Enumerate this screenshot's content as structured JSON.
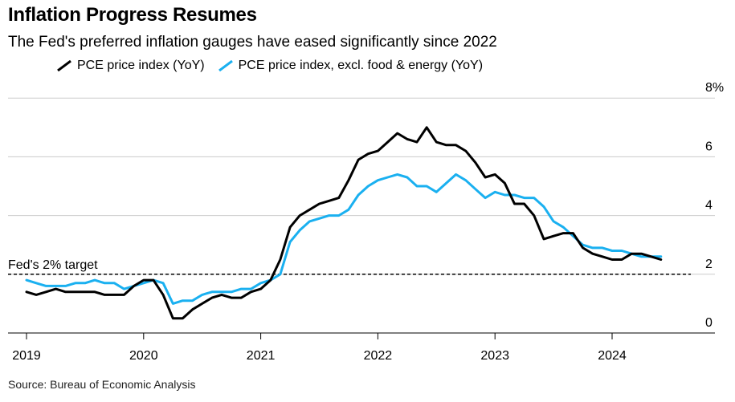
{
  "title": "Inflation Progress Resumes",
  "subtitle": "The Fed's preferred inflation gauges have eased significantly since 2022",
  "source": "Source: Bureau of Economic Analysis",
  "colors": {
    "pce": "#000000",
    "core": "#1ab0f0",
    "grid": "#cccccc"
  },
  "chart_data": {
    "type": "line",
    "title": "Inflation Progress Resumes",
    "subtitle": "The Fed's preferred inflation gauges have eased significantly since 2022",
    "xlabel": "",
    "ylabel": "",
    "x_tick_labels": [
      "2019",
      "2020",
      "2021",
      "2022",
      "2023",
      "2024"
    ],
    "y_tick_labels": [
      "0",
      "2",
      "4",
      "6",
      "8%"
    ],
    "y_ticks": [
      0,
      2,
      4,
      6,
      8
    ],
    "ylim": [
      0,
      8
    ],
    "xlim": [
      "2019-01",
      "2024-12"
    ],
    "grid": true,
    "legend_position": "top",
    "reference_line": {
      "value": 2,
      "label": "Fed's 2% target",
      "style": "dashed"
    },
    "x": [
      "2019-01",
      "2019-02",
      "2019-03",
      "2019-04",
      "2019-05",
      "2019-06",
      "2019-07",
      "2019-08",
      "2019-09",
      "2019-10",
      "2019-11",
      "2019-12",
      "2020-01",
      "2020-02",
      "2020-03",
      "2020-04",
      "2020-05",
      "2020-06",
      "2020-07",
      "2020-08",
      "2020-09",
      "2020-10",
      "2020-11",
      "2020-12",
      "2021-01",
      "2021-02",
      "2021-03",
      "2021-04",
      "2021-05",
      "2021-06",
      "2021-07",
      "2021-08",
      "2021-09",
      "2021-10",
      "2021-11",
      "2021-12",
      "2022-01",
      "2022-02",
      "2022-03",
      "2022-04",
      "2022-05",
      "2022-06",
      "2022-07",
      "2022-08",
      "2022-09",
      "2022-10",
      "2022-11",
      "2022-12",
      "2023-01",
      "2023-02",
      "2023-03",
      "2023-04",
      "2023-05",
      "2023-06",
      "2023-07",
      "2023-08",
      "2023-09",
      "2023-10",
      "2023-11",
      "2023-12",
      "2024-01",
      "2024-02",
      "2024-03",
      "2024-04",
      "2024-05",
      "2024-06"
    ],
    "series": [
      {
        "name": "PCE price index (YoY)",
        "color": "#000000",
        "values": [
          1.4,
          1.3,
          1.4,
          1.5,
          1.4,
          1.4,
          1.4,
          1.4,
          1.3,
          1.3,
          1.3,
          1.6,
          1.8,
          1.8,
          1.3,
          0.5,
          0.5,
          0.8,
          1.0,
          1.2,
          1.3,
          1.2,
          1.2,
          1.4,
          1.5,
          1.8,
          2.5,
          3.6,
          4.0,
          4.2,
          4.4,
          4.5,
          4.6,
          5.2,
          5.9,
          6.1,
          6.2,
          6.5,
          6.8,
          6.6,
          6.5,
          7.0,
          6.5,
          6.4,
          6.4,
          6.2,
          5.8,
          5.3,
          5.4,
          5.1,
          4.4,
          4.4,
          4.0,
          3.2,
          3.3,
          3.4,
          3.4,
          2.9,
          2.7,
          2.6,
          2.5,
          2.5,
          2.7,
          2.7,
          2.6,
          2.5
        ]
      },
      {
        "name": "PCE price index, excl. food & energy (YoY)",
        "color": "#1ab0f0",
        "values": [
          1.8,
          1.7,
          1.6,
          1.6,
          1.6,
          1.7,
          1.7,
          1.8,
          1.7,
          1.7,
          1.5,
          1.6,
          1.7,
          1.8,
          1.7,
          1.0,
          1.1,
          1.1,
          1.3,
          1.4,
          1.4,
          1.4,
          1.5,
          1.5,
          1.7,
          1.8,
          2.0,
          3.1,
          3.5,
          3.8,
          3.9,
          4.0,
          4.0,
          4.2,
          4.7,
          5.0,
          5.2,
          5.3,
          5.4,
          5.3,
          5.0,
          5.0,
          4.8,
          5.1,
          5.4,
          5.2,
          4.9,
          4.6,
          4.8,
          4.7,
          4.7,
          4.6,
          4.6,
          4.3,
          3.8,
          3.6,
          3.3,
          3.0,
          2.9,
          2.9,
          2.8,
          2.8,
          2.7,
          2.6,
          2.6,
          2.6
        ]
      }
    ]
  }
}
